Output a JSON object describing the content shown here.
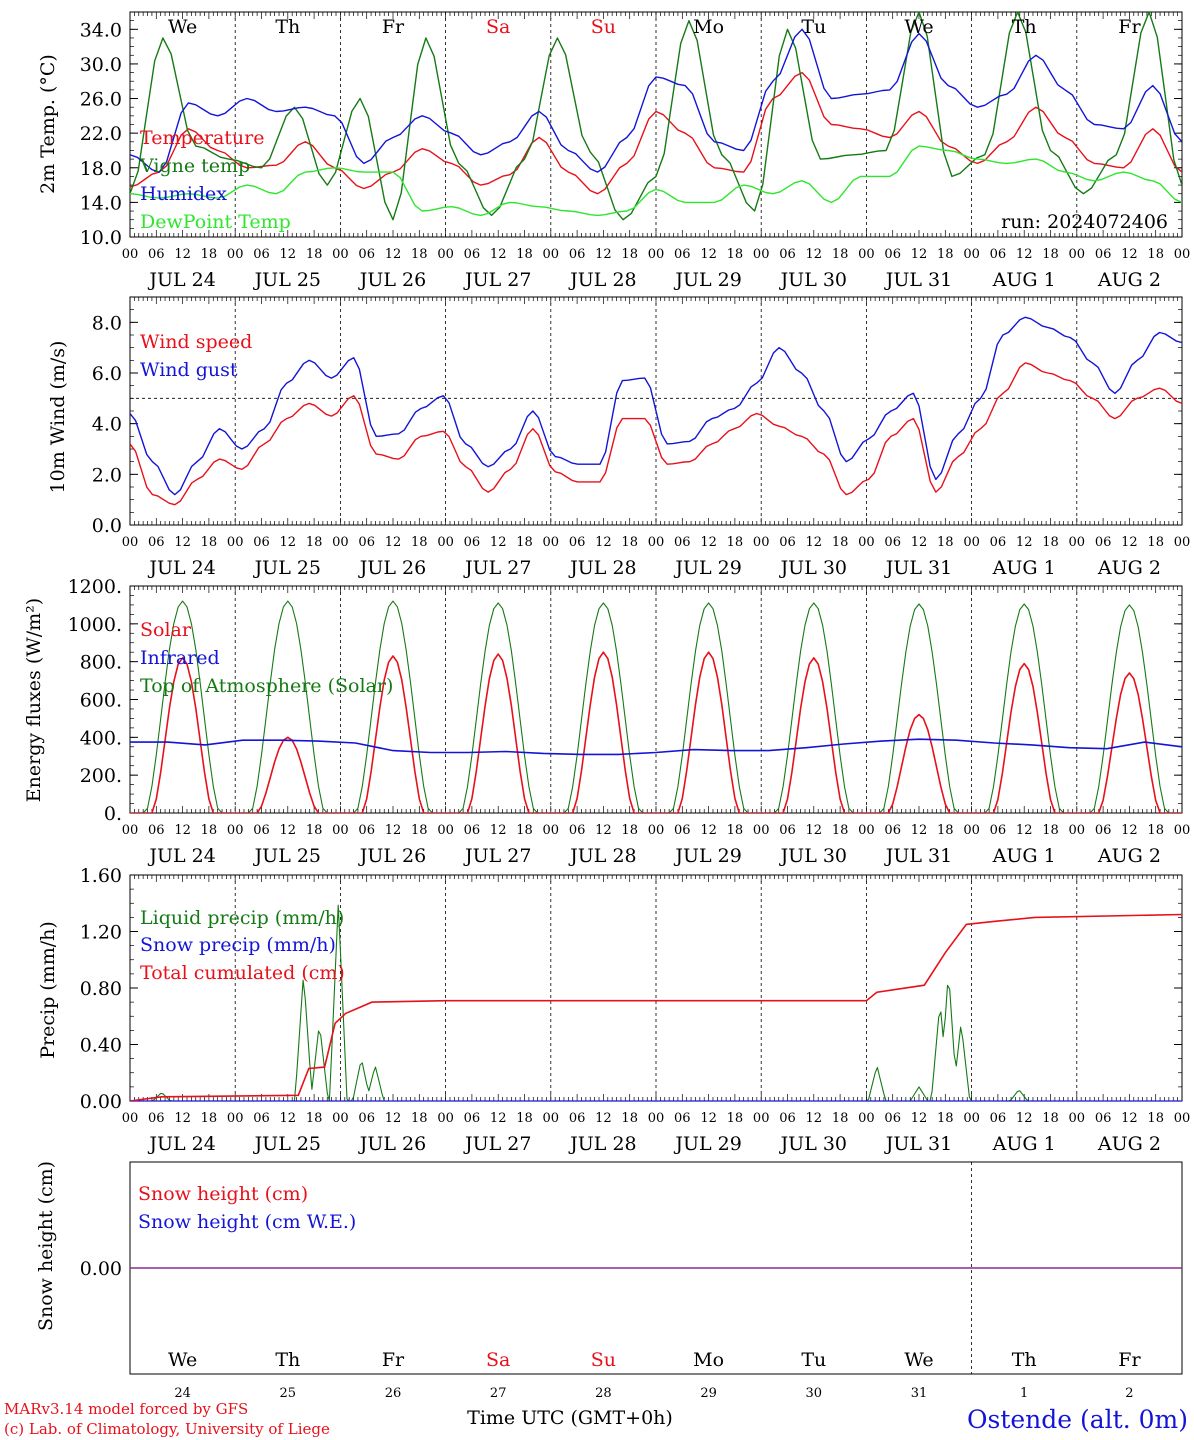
{
  "meta": {
    "model_line1": "MARv3.14 model forced by GFS",
    "model_line2": "(c) Lab. of Climatology, University of Liege",
    "x_axis_title": "Time UTC (GMT+0h)",
    "station": "Ostende (alt. 0m)",
    "run": "run: 2024072406"
  },
  "colors": {
    "red": "#e8101a",
    "green": "#157a15",
    "blue": "#1414d8",
    "lightgreen": "#2ee62e",
    "purple": "#8e2a8e",
    "black": "#000000"
  },
  "time_axis": {
    "start": "JUL 24 00 UTC",
    "days_span": 10,
    "hour_labels": [
      "00",
      "06",
      "12",
      "18"
    ],
    "date_labels": [
      "JUL 24",
      "JUL 25",
      "JUL 26",
      "JUL 27",
      "JUL 28",
      "JUL 29",
      "JUL 30",
      "JUL 31",
      "AUG  1",
      "AUG  2"
    ],
    "weekdays": [
      "We",
      "Th",
      "Fr",
      "Sa",
      "Su",
      "Mo",
      "Tu",
      "We",
      "Th",
      "Fr"
    ],
    "weekday_colors": [
      "#000000",
      "#000000",
      "#000000",
      "#e8101a",
      "#e8101a",
      "#000000",
      "#000000",
      "#000000",
      "#000000",
      "#000000"
    ],
    "day_numbers": [
      "24",
      "25",
      "26",
      "27",
      "28",
      "29",
      "30",
      "31",
      "1",
      "2"
    ]
  },
  "chart_data": [
    {
      "type": "line",
      "ylabel": "2m Temp. (°C)",
      "ylim": [
        10,
        36
      ],
      "yticks": [
        "10.0",
        "14.0",
        "18.0",
        "22.0",
        "26.0",
        "30.0",
        "34.0"
      ],
      "legend_placement": "left",
      "hour_step": 6,
      "series": [
        {
          "name": "Temperature",
          "color": "#e8101a",
          "values": [
            15.8,
            17.5,
            22.5,
            20,
            18,
            18.3,
            21,
            18,
            15.6,
            17.5,
            20.2,
            18.5,
            16,
            17.2,
            21.5,
            17.5,
            15,
            18.5,
            24.5,
            22,
            18,
            17.5,
            26,
            29,
            23,
            22.5,
            21.5,
            24.5,
            20.5,
            18.5,
            21,
            25,
            21.5,
            18.5,
            18,
            22.5,
            17.5
          ]
        },
        {
          "name": "Vigne temp",
          "color": "#157a15",
          "values": [
            15,
            33,
            20.5,
            19,
            18,
            25,
            16,
            26,
            12,
            33,
            18.5,
            12.5,
            19,
            33,
            19.8,
            12,
            17,
            35,
            19.5,
            13,
            34,
            19,
            19.5,
            20,
            36,
            17,
            19.5,
            36,
            20,
            15,
            19.5,
            36,
            16
          ]
        },
        {
          "name": "Humidex",
          "color": "#1414d8",
          "values": [
            19.5,
            17.5,
            25.5,
            24,
            26,
            24.5,
            25,
            24,
            18.5,
            21.5,
            24,
            22,
            19.5,
            21,
            24.5,
            20,
            17.5,
            21.5,
            28.5,
            27.5,
            21,
            20,
            28,
            34,
            26,
            26.5,
            27,
            33.5,
            27.5,
            25,
            26.5,
            31,
            27,
            23,
            22.5,
            27.5,
            21
          ]
        },
        {
          "name": "DewPoint Temp",
          "color": "#2ee62e",
          "values": [
            15,
            14.5,
            15,
            14.5,
            16,
            15,
            17.5,
            18,
            17.5,
            17.5,
            13,
            13.5,
            12.5,
            14,
            13.5,
            13,
            12.5,
            13,
            15.5,
            14,
            14,
            16,
            15,
            16.5,
            14,
            17,
            17,
            20.5,
            20,
            19,
            18.5,
            19,
            17.5,
            16.5,
            17.5,
            16.5,
            14
          ]
        }
      ]
    },
    {
      "type": "line",
      "ylabel": "10m Wind (m/s)",
      "ylim": [
        0,
        9
      ],
      "yticks": [
        "0.0",
        "2.0",
        "4.0",
        "6.0",
        "8.0"
      ],
      "reference_line": 5,
      "legend_placement": "left",
      "hour_step": 6,
      "series": [
        {
          "name": "Wind speed",
          "color": "#e8101a",
          "values": [
            3.2,
            1.2,
            0.8,
            1.8,
            2.6,
            2.2,
            3.2,
            4.2,
            4.8,
            4.3,
            5.1,
            2.8,
            2.6,
            3.5,
            3.7,
            2.3,
            1.3,
            2.2,
            3.8,
            2.1,
            1.7,
            1.7,
            4.2,
            4.2,
            2.4,
            2.5,
            3.2,
            3.8,
            4.4,
            3.9,
            3.5,
            2.8,
            1.2,
            1.8,
            3.5,
            4.2,
            1.3,
            2.7,
            3.8,
            5.2,
            6.4,
            6,
            5.7,
            5,
            4.2,
            5,
            5.4,
            4.8
          ]
        },
        {
          "name": "Wind gust",
          "color": "#1414d8",
          "values": [
            4.4,
            2.5,
            1.2,
            2.5,
            3.8,
            3,
            3.8,
            5.6,
            6.5,
            5.8,
            6.6,
            3.5,
            3.6,
            4.6,
            5.1,
            3.2,
            2.3,
            3,
            4.5,
            2.7,
            2.4,
            2.4,
            5.7,
            5.8,
            3.2,
            3.3,
            4.2,
            4.6,
            5.6,
            7,
            6,
            4.5,
            2.5,
            3.4,
            4.5,
            5.2,
            1.8,
            3.6,
            5,
            7.5,
            8.2,
            7.8,
            7.4,
            6.4,
            5.2,
            6.5,
            7.6,
            7.2
          ]
        }
      ]
    },
    {
      "type": "line",
      "ylabel": "Energy fluxes (W/m²)",
      "ylim": [
        0,
        1200
      ],
      "yticks": [
        "0.",
        "200.",
        "400.",
        "600.",
        "800.",
        "1000.",
        "1200."
      ],
      "legend_placement": "left",
      "daily_peaks": {
        "Solar": [
          820,
          400,
          830,
          840,
          850,
          850,
          820,
          520,
          790,
          740
        ],
        "Top of Atmosphere (Solar)": [
          1120,
          1120,
          1120,
          1110,
          1110,
          1110,
          1110,
          1105,
          1105,
          1100
        ]
      },
      "series": [
        {
          "name": "Solar",
          "color": "#e8101a"
        },
        {
          "name": "Infrared",
          "color": "#1414d8",
          "values": [
            375,
            375,
            360,
            385,
            385,
            380,
            370,
            330,
            320,
            320,
            325,
            315,
            310,
            310,
            320,
            335,
            330,
            330,
            345,
            365,
            380,
            390,
            385,
            370,
            360,
            345,
            340,
            375,
            350
          ]
        },
        {
          "name": "Top of Atmosphere (Solar)",
          "color": "#157a15"
        }
      ]
    },
    {
      "type": "line",
      "ylabel": "Precip (mm/h)",
      "ylim": [
        0,
        1.6
      ],
      "yticks": [
        "0.00",
        "0.40",
        "0.80",
        "1.20",
        "1.60"
      ],
      "legend_placement": "left",
      "series": [
        {
          "name": "Liquid precip (mm/h)",
          "color": "#157a15",
          "peaks": [
            [
              0.3,
              0.06
            ],
            [
              1.65,
              0.9
            ],
            [
              1.8,
              0.55
            ],
            [
              1.98,
              1.4
            ],
            [
              2.2,
              0.3
            ],
            [
              2.33,
              0.25
            ],
            [
              7.1,
              0.25
            ],
            [
              7.5,
              0.1
            ],
            [
              7.7,
              0.7
            ],
            [
              7.78,
              0.92
            ],
            [
              7.9,
              0.55
            ],
            [
              8.45,
              0.08
            ]
          ]
        },
        {
          "name": "Snow precip (mm/h)",
          "color": "#1414d8",
          "values": [
            0
          ]
        },
        {
          "name": "Total cumulated (cm)",
          "color": "#e8101a",
          "points": [
            [
              0,
              0.0
            ],
            [
              0.3,
              0.03
            ],
            [
              1.6,
              0.04
            ],
            [
              1.7,
              0.23
            ],
            [
              1.85,
              0.24
            ],
            [
              1.95,
              0.55
            ],
            [
              2.05,
              0.62
            ],
            [
              2.3,
              0.7
            ],
            [
              3,
              0.71
            ],
            [
              7,
              0.71
            ],
            [
              7.1,
              0.77
            ],
            [
              7.55,
              0.82
            ],
            [
              7.75,
              1.05
            ],
            [
              7.95,
              1.25
            ],
            [
              8.2,
              1.27
            ],
            [
              8.6,
              1.3
            ],
            [
              10,
              1.32
            ]
          ]
        }
      ]
    },
    {
      "type": "line",
      "ylabel": "Snow height (cm)",
      "ylim": [
        -1,
        1
      ],
      "yticks": [
        "0.00"
      ],
      "legend_placement": "left",
      "series": [
        {
          "name": "Snow height (cm)",
          "color": "#e8101a",
          "values": [
            0
          ]
        },
        {
          "name": "Snow height (cm W.E.)",
          "color": "#1414d8",
          "values": [
            0
          ]
        }
      ]
    }
  ]
}
